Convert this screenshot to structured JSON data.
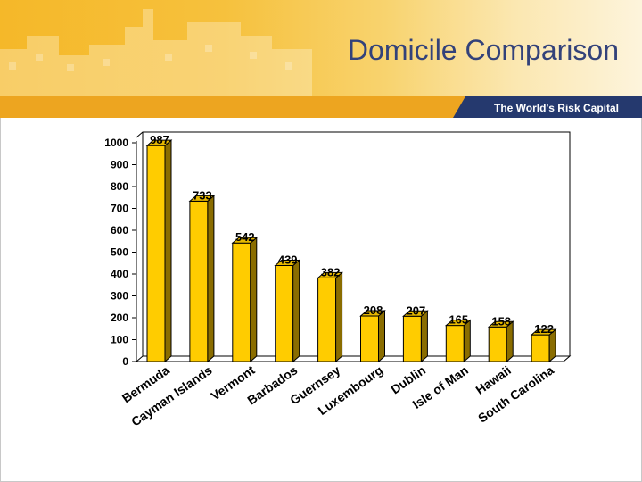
{
  "slide": {
    "title": "Domicile Comparison",
    "tagline": "The World's Risk Capital"
  },
  "colors": {
    "bar_front": "#ffcc00",
    "bar_side": "#8a6d00",
    "bar_top": "#e6b800",
    "banner_stripe": "#eda520",
    "tagline_bar": "#25396e",
    "title": "#33427a"
  },
  "chart_data": {
    "type": "bar",
    "style": "3d",
    "title": "",
    "xlabel": "",
    "ylabel": "",
    "ylim": [
      0,
      1000
    ],
    "yticks": [
      0,
      100,
      200,
      300,
      400,
      500,
      600,
      700,
      800,
      900,
      1000
    ],
    "grid": false,
    "legend": "none",
    "categories": [
      "Bermuda",
      "Cayman Islands",
      "Vermont",
      "Barbados",
      "Guernsey",
      "Luxembourg",
      "Dublin",
      "Isle of Man",
      "Hawaii",
      "South Carolina"
    ],
    "values": [
      987,
      733,
      542,
      439,
      382,
      208,
      207,
      165,
      158,
      122
    ],
    "data_labels": [
      "987",
      "733",
      "542",
      "439",
      "382",
      "208",
      "207",
      "165",
      "158",
      "122"
    ]
  }
}
